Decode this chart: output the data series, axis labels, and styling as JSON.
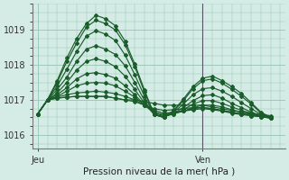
{
  "xlabel": "Pression niveau de la mer( hPa )",
  "bg_color": "#d4ece5",
  "grid_color": "#9ec8b8",
  "line_color": "#1a5c2a",
  "xtick_labels": [
    "Jeu",
    "Ven"
  ],
  "ylim": [
    1015.6,
    1019.75
  ],
  "yticks": [
    1016,
    1017,
    1018,
    1019
  ],
  "xlim": [
    -0.5,
    25.5
  ],
  "vline_x": 17,
  "jeu_x": 0,
  "ven_x": 17,
  "series": [
    [
      1016.6,
      1017.0,
      1017.05,
      1017.08,
      1017.1,
      1017.1,
      1017.1,
      1017.1,
      1017.05,
      1017.0,
      1017.0,
      1016.95,
      1016.9,
      1016.85,
      1016.85,
      1016.85,
      1016.85,
      1016.85,
      1016.8,
      1016.75,
      1016.7,
      1016.65,
      1016.62,
      1016.58,
      1016.55
    ],
    [
      1016.6,
      1017.0,
      1017.05,
      1017.08,
      1017.1,
      1017.1,
      1017.1,
      1017.1,
      1017.05,
      1017.0,
      1016.95,
      1016.85,
      1016.75,
      1016.7,
      1016.72,
      1016.75,
      1016.78,
      1016.78,
      1016.75,
      1016.7,
      1016.65,
      1016.6,
      1016.58,
      1016.55,
      1016.52
    ],
    [
      1016.6,
      1017.0,
      1017.08,
      1017.15,
      1017.2,
      1017.22,
      1017.25,
      1017.22,
      1017.18,
      1017.1,
      1017.0,
      1016.85,
      1016.7,
      1016.62,
      1016.65,
      1016.68,
      1016.72,
      1016.75,
      1016.72,
      1016.68,
      1016.62,
      1016.58,
      1016.55,
      1016.52,
      1016.5
    ],
    [
      1016.6,
      1017.0,
      1017.1,
      1017.25,
      1017.4,
      1017.48,
      1017.5,
      1017.48,
      1017.4,
      1017.25,
      1017.08,
      1016.85,
      1016.65,
      1016.58,
      1016.62,
      1016.68,
      1016.75,
      1016.78,
      1016.75,
      1016.7,
      1016.65,
      1016.6,
      1016.55,
      1016.52,
      1016.48
    ],
    [
      1016.6,
      1017.0,
      1017.15,
      1017.35,
      1017.6,
      1017.75,
      1017.78,
      1017.72,
      1017.62,
      1017.4,
      1017.15,
      1016.85,
      1016.62,
      1016.55,
      1016.6,
      1016.68,
      1016.78,
      1016.85,
      1016.85,
      1016.8,
      1016.72,
      1016.65,
      1016.58,
      1016.52,
      1016.48
    ],
    [
      1016.6,
      1017.0,
      1017.2,
      1017.5,
      1017.85,
      1018.1,
      1018.18,
      1018.1,
      1017.95,
      1017.68,
      1017.3,
      1016.9,
      1016.58,
      1016.52,
      1016.6,
      1016.72,
      1016.88,
      1016.98,
      1016.98,
      1016.9,
      1016.8,
      1016.7,
      1016.62,
      1016.55,
      1016.48
    ],
    [
      1016.6,
      1017.0,
      1017.3,
      1017.65,
      1018.1,
      1018.45,
      1018.55,
      1018.45,
      1018.3,
      1017.98,
      1017.5,
      1016.98,
      1016.58,
      1016.52,
      1016.62,
      1016.78,
      1016.98,
      1017.12,
      1017.15,
      1017.05,
      1016.9,
      1016.78,
      1016.65,
      1016.55,
      1016.48
    ],
    [
      1016.6,
      1017.0,
      1017.4,
      1017.88,
      1018.38,
      1018.82,
      1018.98,
      1018.88,
      1018.7,
      1018.28,
      1017.72,
      1017.1,
      1016.58,
      1016.5,
      1016.65,
      1016.88,
      1017.15,
      1017.32,
      1017.35,
      1017.25,
      1017.1,
      1016.92,
      1016.75,
      1016.58,
      1016.48
    ],
    [
      1016.6,
      1017.0,
      1017.5,
      1018.1,
      1018.62,
      1019.08,
      1019.28,
      1019.18,
      1019.0,
      1018.58,
      1017.95,
      1017.22,
      1016.58,
      1016.5,
      1016.68,
      1016.98,
      1017.32,
      1017.55,
      1017.6,
      1017.48,
      1017.3,
      1017.1,
      1016.88,
      1016.62,
      1016.48
    ],
    [
      1016.6,
      1017.0,
      1017.55,
      1018.2,
      1018.75,
      1019.18,
      1019.42,
      1019.32,
      1019.12,
      1018.68,
      1018.02,
      1017.28,
      1016.58,
      1016.5,
      1016.7,
      1017.02,
      1017.38,
      1017.62,
      1017.68,
      1017.55,
      1017.38,
      1017.18,
      1016.92,
      1016.65,
      1016.5
    ]
  ]
}
